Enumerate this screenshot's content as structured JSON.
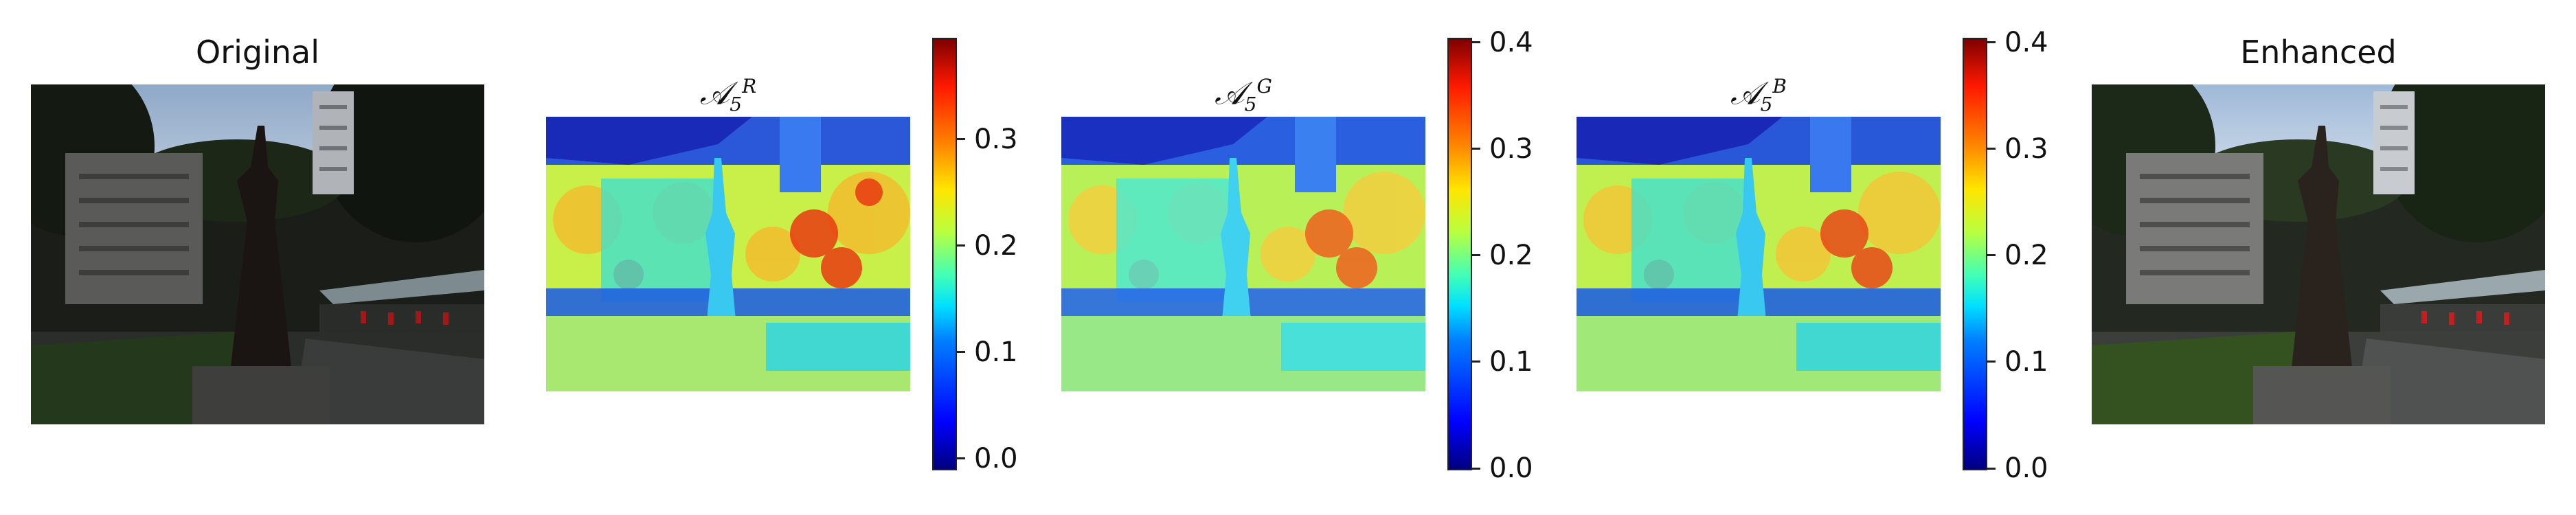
{
  "panels": {
    "original": {
      "title": "Original"
    },
    "map_r": {
      "title_base": "𝒜",
      "title_sub": "5",
      "title_sup": "R",
      "ticks": [
        "0.0",
        "0.1",
        "0.2",
        "0.3"
      ]
    },
    "map_g": {
      "title_base": "𝒜",
      "title_sub": "5",
      "title_sup": "G",
      "ticks": [
        "0.0",
        "0.1",
        "0.2",
        "0.3",
        "0.4"
      ]
    },
    "map_b": {
      "title_base": "𝒜",
      "title_sub": "5",
      "title_sup": "B",
      "ticks": [
        "0.0",
        "0.1",
        "0.2",
        "0.3",
        "0.4"
      ]
    },
    "enhanced": {
      "title": "Enhanced"
    }
  },
  "colormap": "jet",
  "colors": {
    "sky_blue": "#2a58d8",
    "heat_yellow": "#f0f040",
    "heat_red": "#e83a10",
    "heat_cyan": "#40e0d0"
  }
}
